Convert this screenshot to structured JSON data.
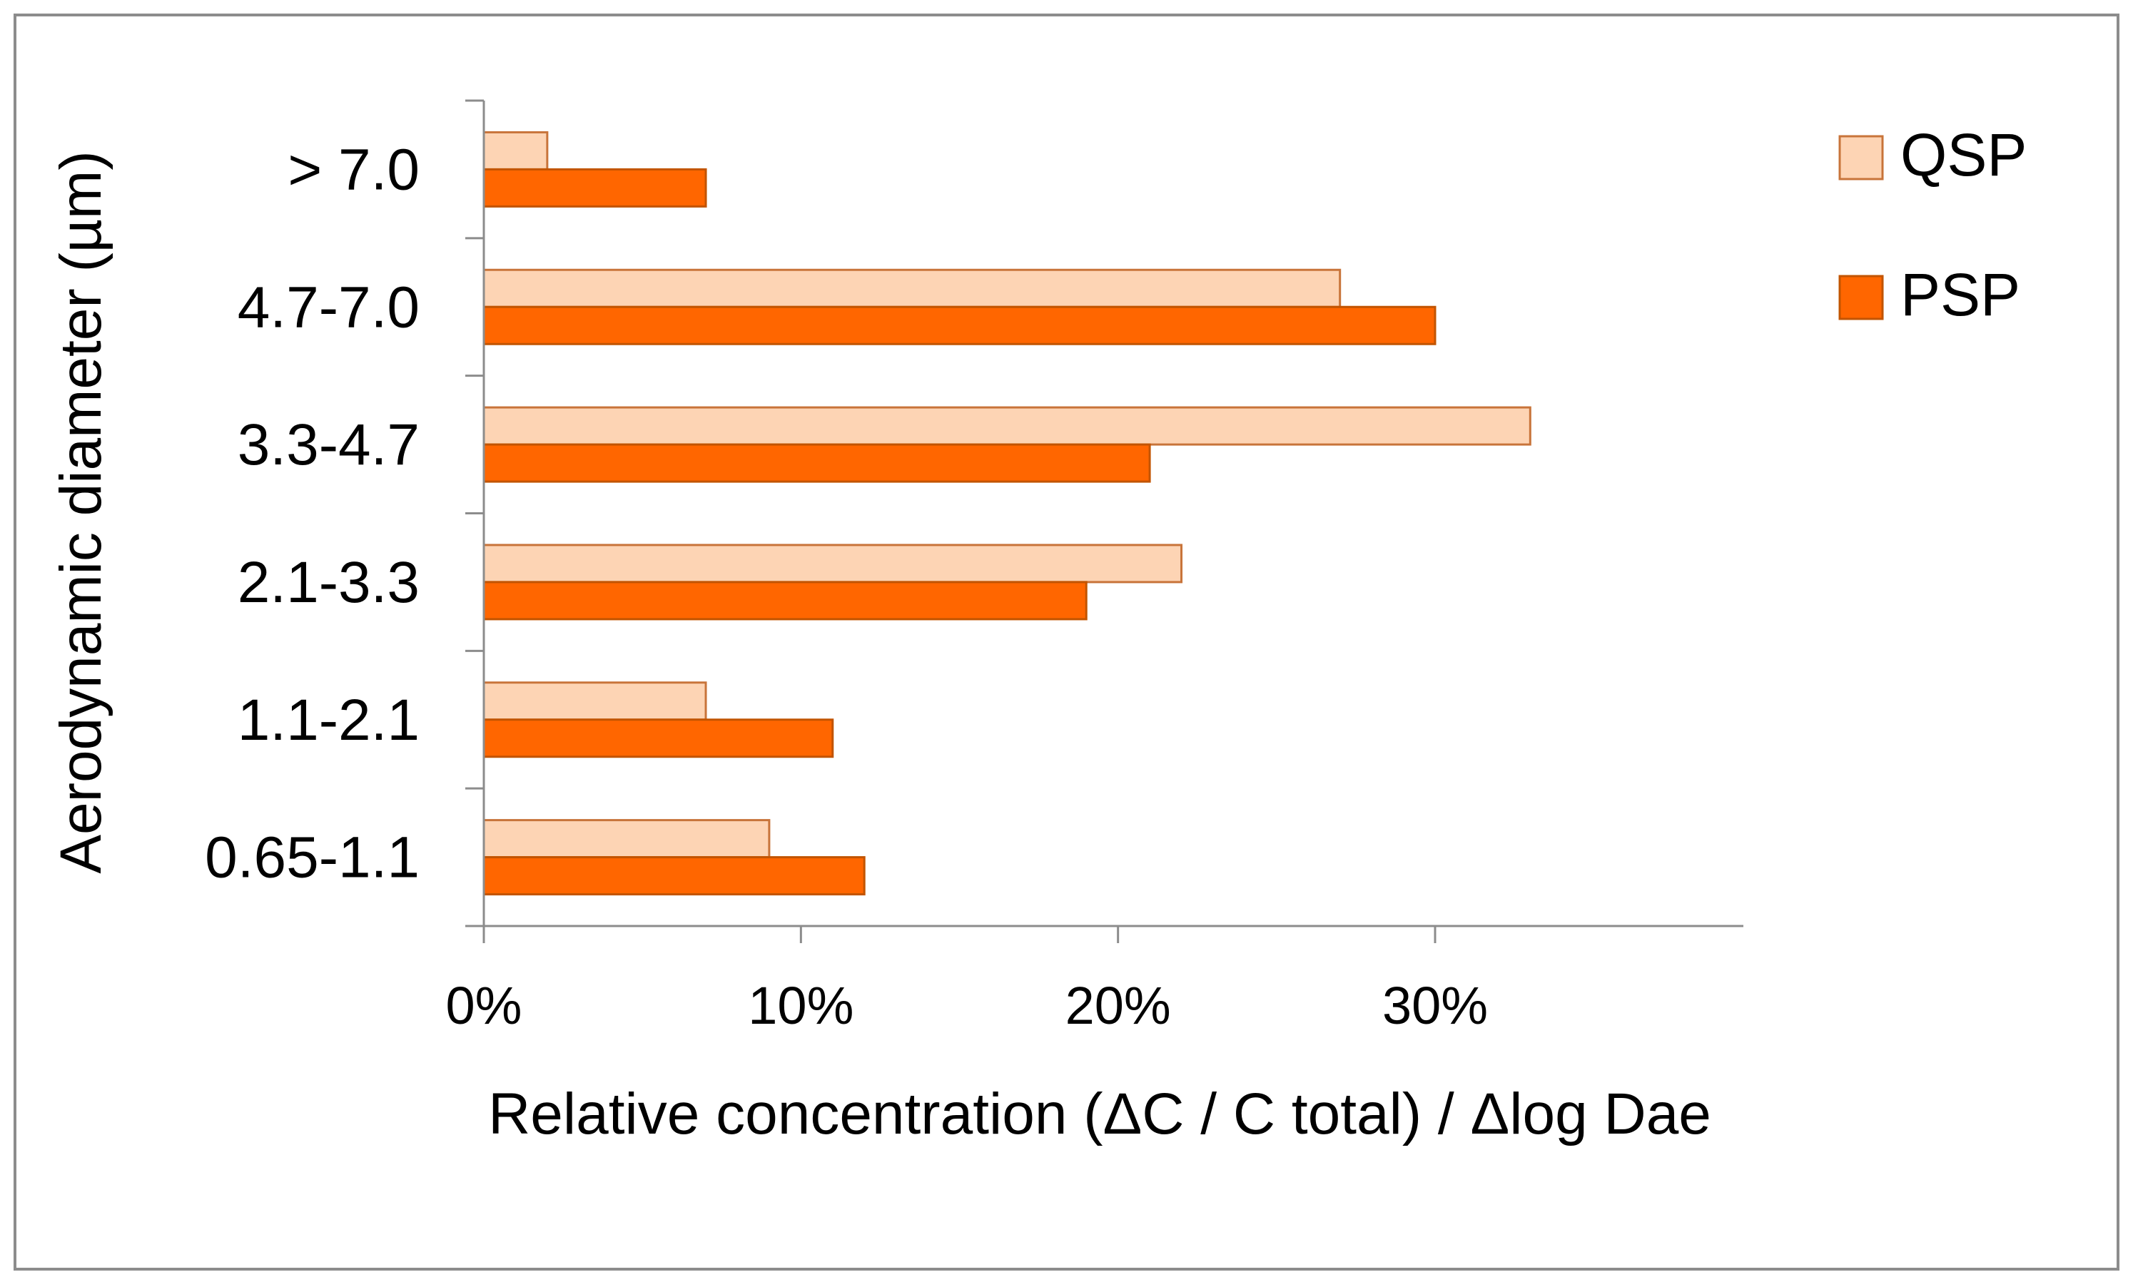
{
  "chart_data": {
    "type": "bar",
    "orientation": "horizontal",
    "categories": [
      "0.65-1.1",
      "1.1-2.1",
      "2.1-3.3",
      "3.3-4.7",
      "4.7-7.0",
      "> 7.0"
    ],
    "series": [
      {
        "name": "QSP",
        "values": [
          9,
          7,
          22,
          33,
          27,
          2
        ],
        "color": "#fdd4b4",
        "stroke": "#c8743a"
      },
      {
        "name": "PSP",
        "values": [
          12,
          11,
          19,
          21,
          30,
          7
        ],
        "color": "#ff6600",
        "stroke": "#c25400"
      }
    ],
    "title": "",
    "xlabel": "Relative concentration (ΔC / C total) / Δlog Dae",
    "ylabel": "Aerodynamic diameter (µm)",
    "xlim": [
      0,
      35
    ],
    "xticks": [
      0,
      10,
      20,
      30
    ],
    "xtick_labels": [
      "0%",
      "10%",
      "20%",
      "30%"
    ],
    "grid": false,
    "legend_position": "top-right"
  }
}
